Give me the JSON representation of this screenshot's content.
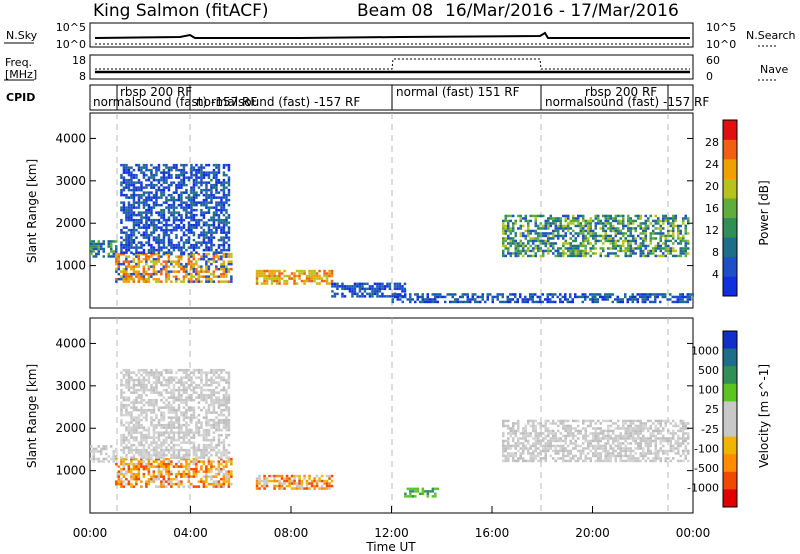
{
  "header": {
    "station": "King Salmon (fitACF)",
    "beam": "Beam 08",
    "dates": "16/Mar/2016 - 17/Mar/2016"
  },
  "strips": {
    "nsky_label": "N.Sky",
    "nsearch_label": "N.Search",
    "freq_label_1": "Freq.",
    "freq_label_2": "[MHz]",
    "nave_label": "Nave",
    "cpid_label": "CPID",
    "nsky_ticks": [
      "10^5",
      "10^0"
    ],
    "nsky_right_ticks": [
      "10^5",
      "10^0"
    ],
    "freq_ticks": [
      "18",
      "8"
    ],
    "nave_ticks": [
      "60",
      "0"
    ]
  },
  "cpid_segments": [
    {
      "label": "rbsp 200 RF",
      "row": 1
    },
    {
      "label": "normalsound (fast) -157 RF",
      "row": 2
    },
    {
      "label": "normalsound (fast) -157 RF",
      "row": 2
    },
    {
      "label": "normal (fast) 151 RF",
      "row": 1
    },
    {
      "label": "rbsp 200 RF",
      "row": 1
    },
    {
      "label": "normalsound (fast) -157 RF",
      "row": 2
    }
  ],
  "chart_data": [
    {
      "type": "heatmap",
      "panel": "power",
      "ylabel": "Slant Range [km]",
      "xlabel": "",
      "xlim": [
        0,
        24
      ],
      "ylim": [
        0,
        4600
      ],
      "yticks": [
        "1000",
        "2000",
        "3000",
        "4000"
      ],
      "colorbar": {
        "label": "Power [dB]",
        "ticks": [
          "4",
          "8",
          "12",
          "16",
          "20",
          "24",
          "28"
        ]
      },
      "echo_regions": [
        {
          "x": [
            0.0,
            1.0
          ],
          "range": [
            1200,
            1600
          ],
          "level": "blue-green"
        },
        {
          "x": [
            1.0,
            5.6
          ],
          "range": [
            600,
            1300
          ],
          "level": "orange-yellow"
        },
        {
          "x": [
            1.2,
            5.5
          ],
          "range": [
            1300,
            3400
          ],
          "level": "blue"
        },
        {
          "x": [
            6.6,
            9.6
          ],
          "range": [
            550,
            900
          ],
          "level": "orange"
        },
        {
          "x": [
            9.6,
            12.5
          ],
          "range": [
            300,
            600
          ],
          "level": "blue"
        },
        {
          "x": [
            16.4,
            23.8
          ],
          "range": [
            1200,
            2200
          ],
          "level": "green-yellow"
        },
        {
          "x": [
            12.0,
            24.0
          ],
          "range": [
            150,
            350
          ],
          "level": "blue"
        }
      ]
    },
    {
      "type": "heatmap",
      "panel": "velocity",
      "ylabel": "Slant Range [km]",
      "xlabel": "Time UT",
      "xlim": [
        0,
        24
      ],
      "ylim": [
        0,
        4600
      ],
      "yticks": [
        "1000",
        "2000",
        "3000",
        "4000"
      ],
      "xticks": [
        "00:00",
        "04:00",
        "08:00",
        "12:00",
        "16:00",
        "20:00",
        "00:00"
      ],
      "colorbar": {
        "label": "Velocity [m s^-1]",
        "ticks": [
          "1000",
          "500",
          "100",
          "25",
          "-25",
          "-100",
          "-500",
          "-1000"
        ]
      },
      "echo_regions": [
        {
          "x": [
            0.0,
            1.0
          ],
          "range": [
            1200,
            1600
          ],
          "level": "grey"
        },
        {
          "x": [
            1.0,
            5.6
          ],
          "range": [
            600,
            1300
          ],
          "level": "orange"
        },
        {
          "x": [
            1.2,
            5.5
          ],
          "range": [
            1300,
            3400
          ],
          "level": "grey"
        },
        {
          "x": [
            6.6,
            9.6
          ],
          "range": [
            550,
            900
          ],
          "level": "orange"
        },
        {
          "x": [
            12.5,
            13.8
          ],
          "range": [
            400,
            600
          ],
          "level": "green"
        },
        {
          "x": [
            16.4,
            23.8
          ],
          "range": [
            1200,
            2200
          ],
          "level": "grey"
        }
      ]
    }
  ],
  "colors": {
    "power_scale": [
      "#1030e0",
      "#1f4fc8",
      "#1e6e8a",
      "#2f8f56",
      "#5fae3c",
      "#b8c21c",
      "#f0a000",
      "#f06010",
      "#e01010"
    ],
    "velocity_scale": [
      "#e00000",
      "#f04a00",
      "#ff8c00",
      "#f0b400",
      "#c8c8c8",
      "#c8c8c8",
      "#5cc41e",
      "#2f8f56",
      "#1e6e8a",
      "#1030c8"
    ],
    "dashed_grid": "#b8b8b8"
  }
}
